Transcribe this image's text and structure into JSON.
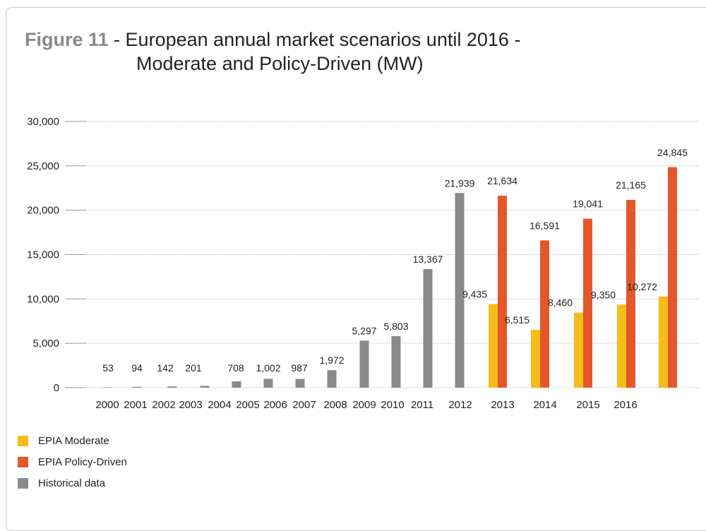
{
  "title": {
    "label": "Figure 11",
    "separator": " - ",
    "line1": "European annual market scenarios until 2016 -",
    "line2": "Moderate and Policy-Driven (MW)"
  },
  "colors": {
    "moderate": "#f6bc1a",
    "policy": "#e4572a",
    "historical": "#8a8a8c",
    "grid": "#bdbdbd"
  },
  "legend": [
    {
      "name": "EPIA Moderate",
      "color": "#f6bc1a"
    },
    {
      "name": "EPIA Policy-Driven",
      "color": "#e4572a"
    },
    {
      "name": " Historical data",
      "color": "#8a8a8c"
    }
  ],
  "chart_data": {
    "type": "bar",
    "title": "Figure 11 - European annual market scenarios until 2016 - Moderate and Policy-Driven (MW)",
    "xlabel": "",
    "ylabel": "",
    "ylim": [
      0,
      30000
    ],
    "yticks": [
      0,
      5000,
      10000,
      15000,
      20000,
      25000,
      30000
    ],
    "ytick_labels": [
      "0",
      "5,000",
      "10,000",
      "15,000",
      "20,000",
      "25,000",
      "30,000"
    ],
    "grid": true,
    "legend_position": "bottom-left",
    "categories": [
      "2000",
      "2001",
      "2002",
      "2003",
      "2004",
      "2005",
      "2006",
      "2007",
      "2008",
      "2009",
      "2010",
      "2011",
      "2012",
      "2013",
      "2014",
      "2015",
      "2016"
    ],
    "series": [
      {
        "name": "Historical data",
        "values": [
          53,
          94,
          142,
          201,
          708,
          1002,
          987,
          1972,
          5297,
          5803,
          13367,
          21939,
          null,
          null,
          null,
          null,
          null
        ],
        "labels": [
          "53",
          "94",
          "142",
          "201",
          "708",
          "1,002",
          "987",
          "1,972",
          "5,297",
          "5,803",
          "13,367",
          "21,939",
          "",
          "",
          "",
          "",
          ""
        ]
      },
      {
        "name": "EPIA Moderate",
        "values": [
          null,
          null,
          null,
          null,
          null,
          null,
          null,
          null,
          null,
          null,
          null,
          null,
          9435,
          6515,
          8460,
          9350,
          10272
        ],
        "labels": [
          "",
          "",
          "",
          "",
          "",
          "",
          "",
          "",
          "",
          "",
          "",
          "",
          "9,435",
          "6,515",
          "8,460",
          "9,350",
          "10,272"
        ]
      },
      {
        "name": "EPIA Policy-Driven",
        "values": [
          null,
          null,
          null,
          null,
          null,
          null,
          null,
          null,
          null,
          null,
          null,
          null,
          21634,
          16591,
          19041,
          21165,
          24845
        ],
        "labels": [
          "",
          "",
          "",
          "",
          "",
          "",
          "",
          "",
          "",
          "",
          "",
          "",
          "21,634",
          "16,591",
          "19,041",
          "21,165",
          "24,845"
        ]
      }
    ]
  }
}
